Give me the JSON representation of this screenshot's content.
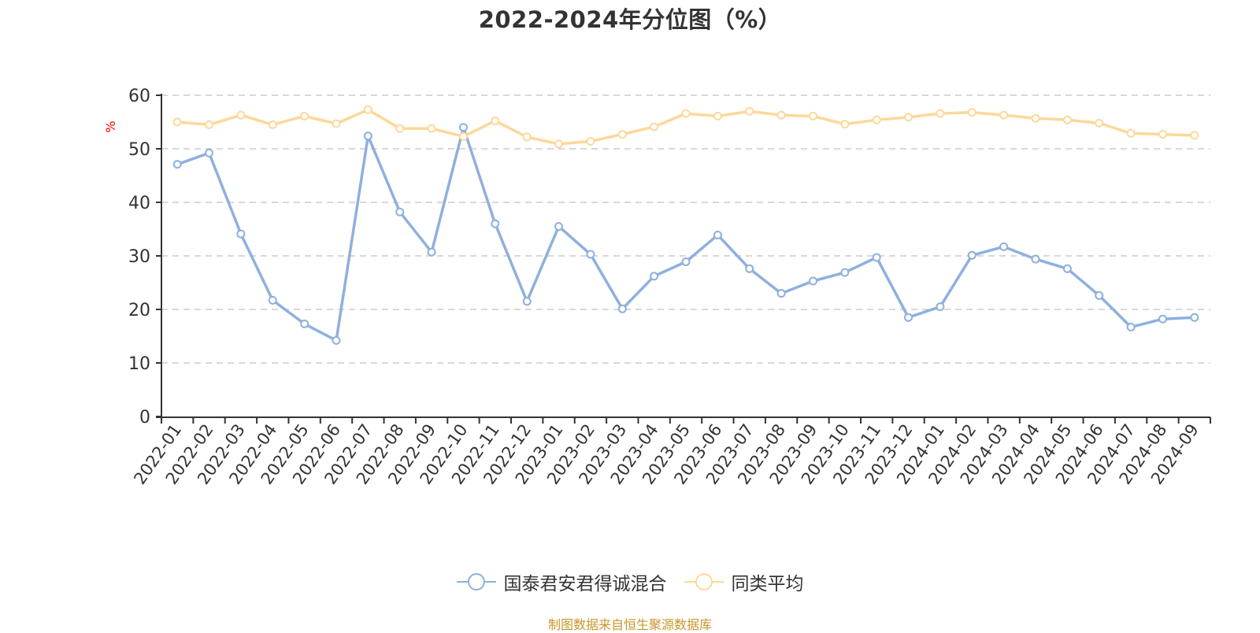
{
  "chart_title": "2022-2024年分位图（%）",
  "footer": "制图数据来自恒生聚源数据库",
  "colors": {
    "series_fund": "#8eb0de",
    "series_avg": "#fdd89a",
    "axis": "#333333",
    "grid": "#cccccc",
    "ylabel": "#ff0000",
    "footer": "#c9962a"
  },
  "legend": {
    "items": [
      {
        "label": "国泰君安君得诚混合",
        "color": "#8eb0de"
      },
      {
        "label": "同类平均",
        "color": "#fdd89a"
      }
    ]
  },
  "chart_data": {
    "type": "line",
    "title": "2022-2024年分位图（%）",
    "xlabel": "",
    "ylabel": "%",
    "ylim": [
      0,
      60
    ],
    "yticks": [
      0,
      10,
      20,
      30,
      40,
      50,
      60
    ],
    "grid": true,
    "legend_position": "bottom",
    "categories": [
      "2022-01",
      "2022-02",
      "2022-03",
      "2022-04",
      "2022-05",
      "2022-06",
      "2022-07",
      "2022-08",
      "2022-09",
      "2022-10",
      "2022-11",
      "2022-12",
      "2023-01",
      "2023-02",
      "2023-03",
      "2023-04",
      "2023-05",
      "2023-06",
      "2023-07",
      "2023-08",
      "2023-09",
      "2023-10",
      "2023-11",
      "2023-12",
      "2024-01",
      "2024-02",
      "2024-03",
      "2024-04",
      "2024-05",
      "2024-06",
      "2024-07",
      "2024-08",
      "2024-09"
    ],
    "series": [
      {
        "name": "国泰君安君得诚混合",
        "color": "#8eb0de",
        "values": [
          47.1,
          49.2,
          34.1,
          21.7,
          17.3,
          14.2,
          52.4,
          38.2,
          30.7,
          54.0,
          36.0,
          21.5,
          35.5,
          30.3,
          20.1,
          26.2,
          28.9,
          33.9,
          27.6,
          23.0,
          25.3,
          26.9,
          29.7,
          18.5,
          20.5,
          30.1,
          31.7,
          29.4,
          27.6,
          22.6,
          16.7,
          18.2,
          18.5
        ]
      },
      {
        "name": "同类平均",
        "color": "#fdd89a",
        "values": [
          55.0,
          54.5,
          56.3,
          54.5,
          56.1,
          54.7,
          57.3,
          53.8,
          53.8,
          52.3,
          55.2,
          52.2,
          50.9,
          51.4,
          52.7,
          54.1,
          56.6,
          56.1,
          57.0,
          56.3,
          56.1,
          54.6,
          55.4,
          55.9,
          56.6,
          56.8,
          56.3,
          55.7,
          55.4,
          54.8,
          52.9,
          52.7,
          52.5
        ]
      }
    ]
  }
}
